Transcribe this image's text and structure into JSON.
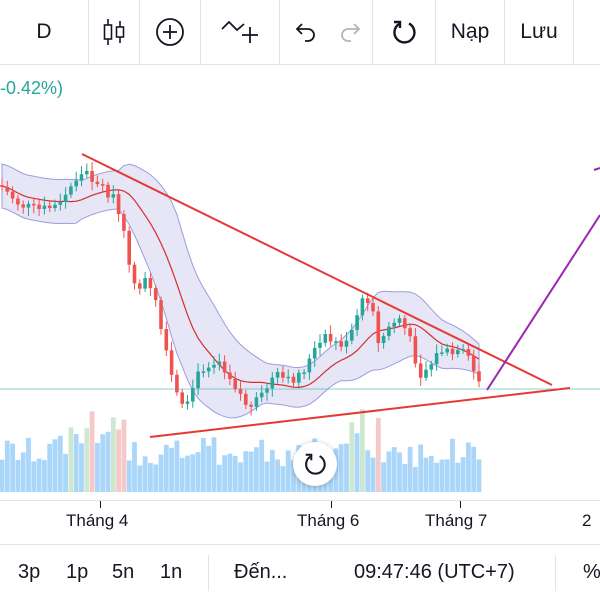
{
  "toolbar": {
    "interval": "D",
    "candles_icon": "candlestick-icon",
    "add_icon": "plus-circle-icon",
    "indicator_icon": "indicator-add-icon",
    "undo_icon": "undo-icon",
    "redo_icon": "redo-icon",
    "reload_icon": "reload-icon",
    "load_label": "Nạp",
    "save_label": "Lưu"
  },
  "header": {
    "change_text": "-0.42%)"
  },
  "x_axis": {
    "labels": [
      "Tháng 4",
      "Tháng 6",
      "Tháng 7",
      "2"
    ]
  },
  "bottom_bar": {
    "ranges": [
      "3p",
      "1p",
      "5n",
      "1n"
    ],
    "goto_label": "Đến...",
    "clock": "09:47:46 (UTC+7)",
    "percent_label": "%"
  },
  "colors": {
    "up": "#26a69a",
    "down": "#ef5350",
    "band": "#9c9cdc",
    "ma": "#d32f2f",
    "trendline": "#e53935",
    "projection": "#9c27b0",
    "volume_blue": "#64b5f6"
  },
  "chart_data": {
    "type": "candlestick",
    "indicators": [
      "Bollinger Bands",
      "Volume"
    ],
    "annotations": [
      "descending triangle trendlines",
      "projection line"
    ],
    "grid": false
  }
}
